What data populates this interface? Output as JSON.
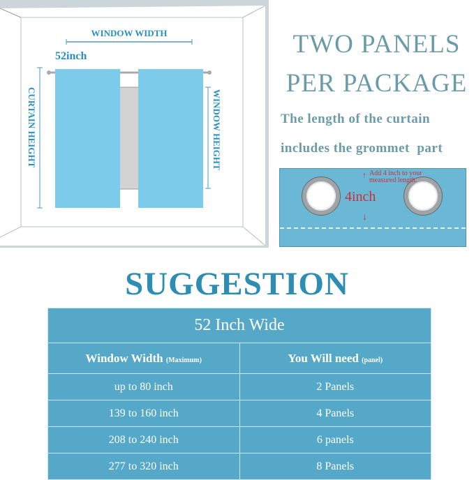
{
  "diagram": {
    "window_width": "WINDOW WIDTH",
    "curtain_width": "52inch",
    "curtain_height": "CURTAIN HEIGHT",
    "window_height": "WINDOW HEIGHT"
  },
  "headline": {
    "line1": "TWO PANELS",
    "line2": "PER PACKAGE",
    "note1": "The length of the curtain",
    "note2": "includes the grommet  part"
  },
  "grommet": {
    "note": "Add 4 inch to your measured length.",
    "measure": "4inch"
  },
  "suggestion": {
    "title": "SUGGESTION",
    "table_title": "52 Inch Wide",
    "headers": [
      {
        "main": "Window Width",
        "sub": "(Maximum)"
      },
      {
        "main": "You Will need",
        "sub": "(panel)"
      }
    ],
    "rows": [
      [
        "up to 80 inch",
        "2 Panels"
      ],
      [
        "139 to 160 inch",
        "4 Panels"
      ],
      [
        "208 to 240 inch",
        "6 panels"
      ],
      [
        "277 to 320 inch",
        "8 Panels"
      ]
    ]
  },
  "colors": {
    "table": "#55a8c8",
    "curtain": "#7dcbea",
    "heading": "#2d8db2"
  }
}
